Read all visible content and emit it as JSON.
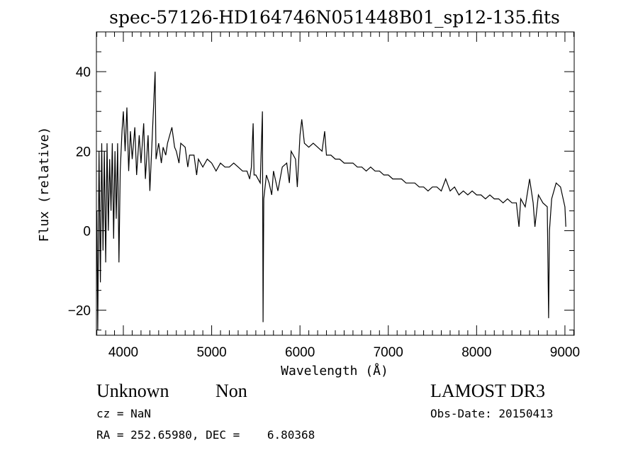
{
  "chart_data": {
    "type": "line",
    "title": "spec-57126-HD164746N051448B01_sp12-135.fits",
    "xlabel": "Wavelength (Å)",
    "ylabel": "Flux (relative)",
    "xlim": [
      3695,
      9105
    ],
    "ylim": [
      -26.3,
      50
    ],
    "xticks": [
      4000,
      5000,
      6000,
      7000,
      8000,
      9000
    ],
    "yticks": [
      -20,
      0,
      20,
      40
    ],
    "xtick_labels": [
      "4000",
      "5000",
      "6000",
      "7000",
      "8000",
      "9000"
    ],
    "ytick_labels": [
      "−20",
      "0",
      "20",
      "40"
    ],
    "x_minor_step": 100,
    "y_minor_step": 5,
    "grid": false,
    "series": [
      {
        "name": "flux",
        "points": [
          [
            3700,
            5
          ],
          [
            3710,
            -25
          ],
          [
            3725,
            20
          ],
          [
            3740,
            -13
          ],
          [
            3755,
            22
          ],
          [
            3770,
            -5
          ],
          [
            3785,
            20
          ],
          [
            3800,
            -8
          ],
          [
            3815,
            22
          ],
          [
            3830,
            0
          ],
          [
            3845,
            18
          ],
          [
            3860,
            5
          ],
          [
            3875,
            22
          ],
          [
            3890,
            -2
          ],
          [
            3905,
            20
          ],
          [
            3920,
            3
          ],
          [
            3935,
            22
          ],
          [
            3950,
            -8
          ],
          [
            3965,
            15
          ],
          [
            3985,
            25
          ],
          [
            4000,
            30
          ],
          [
            4020,
            20
          ],
          [
            4040,
            31
          ],
          [
            4060,
            15
          ],
          [
            4080,
            25
          ],
          [
            4100,
            18
          ],
          [
            4130,
            26
          ],
          [
            4150,
            14
          ],
          [
            4180,
            24
          ],
          [
            4200,
            17
          ],
          [
            4230,
            27
          ],
          [
            4250,
            13
          ],
          [
            4280,
            24
          ],
          [
            4300,
            10
          ],
          [
            4330,
            25
          ],
          [
            4360,
            40
          ],
          [
            4370,
            18
          ],
          [
            4400,
            22
          ],
          [
            4430,
            17
          ],
          [
            4450,
            21
          ],
          [
            4480,
            19
          ],
          [
            4500,
            22
          ],
          [
            4550,
            26
          ],
          [
            4580,
            21
          ],
          [
            4600,
            20
          ],
          [
            4630,
            17
          ],
          [
            4650,
            22
          ],
          [
            4700,
            21
          ],
          [
            4730,
            16
          ],
          [
            4750,
            19
          ],
          [
            4800,
            19
          ],
          [
            4830,
            14
          ],
          [
            4850,
            18
          ],
          [
            4900,
            16
          ],
          [
            4950,
            18
          ],
          [
            5000,
            17
          ],
          [
            5050,
            15
          ],
          [
            5100,
            17
          ],
          [
            5150,
            16
          ],
          [
            5200,
            16
          ],
          [
            5250,
            17
          ],
          [
            5300,
            16
          ],
          [
            5350,
            15
          ],
          [
            5400,
            15
          ],
          [
            5430,
            13
          ],
          [
            5450,
            16
          ],
          [
            5470,
            27
          ],
          [
            5480,
            14
          ],
          [
            5500,
            14
          ],
          [
            5550,
            12
          ],
          [
            5575,
            30
          ],
          [
            5582,
            -23
          ],
          [
            5590,
            8
          ],
          [
            5620,
            14
          ],
          [
            5650,
            12
          ],
          [
            5680,
            9
          ],
          [
            5700,
            15
          ],
          [
            5750,
            10
          ],
          [
            5800,
            16
          ],
          [
            5850,
            17
          ],
          [
            5880,
            12
          ],
          [
            5900,
            20
          ],
          [
            5950,
            18
          ],
          [
            5970,
            11
          ],
          [
            6000,
            24
          ],
          [
            6020,
            28
          ],
          [
            6050,
            22
          ],
          [
            6100,
            21
          ],
          [
            6150,
            22
          ],
          [
            6200,
            21
          ],
          [
            6250,
            20
          ],
          [
            6280,
            25
          ],
          [
            6300,
            19
          ],
          [
            6350,
            19
          ],
          [
            6400,
            18
          ],
          [
            6450,
            18
          ],
          [
            6500,
            17
          ],
          [
            6550,
            17
          ],
          [
            6600,
            17
          ],
          [
            6650,
            16
          ],
          [
            6700,
            16
          ],
          [
            6750,
            15
          ],
          [
            6800,
            16
          ],
          [
            6850,
            15
          ],
          [
            6900,
            15
          ],
          [
            6950,
            14
          ],
          [
            7000,
            14
          ],
          [
            7050,
            13
          ],
          [
            7100,
            13
          ],
          [
            7150,
            13
          ],
          [
            7200,
            12
          ],
          [
            7250,
            12
          ],
          [
            7300,
            12
          ],
          [
            7350,
            11
          ],
          [
            7400,
            11
          ],
          [
            7450,
            10
          ],
          [
            7500,
            11
          ],
          [
            7550,
            11
          ],
          [
            7600,
            10
          ],
          [
            7650,
            13
          ],
          [
            7700,
            10
          ],
          [
            7750,
            11
          ],
          [
            7800,
            9
          ],
          [
            7850,
            10
          ],
          [
            7900,
            9
          ],
          [
            7950,
            10
          ],
          [
            8000,
            9
          ],
          [
            8050,
            9
          ],
          [
            8100,
            8
          ],
          [
            8150,
            9
          ],
          [
            8200,
            8
          ],
          [
            8250,
            8
          ],
          [
            8300,
            7
          ],
          [
            8350,
            8
          ],
          [
            8400,
            7
          ],
          [
            8450,
            7
          ],
          [
            8480,
            1
          ],
          [
            8500,
            8
          ],
          [
            8550,
            6
          ],
          [
            8600,
            13
          ],
          [
            8640,
            7
          ],
          [
            8660,
            1
          ],
          [
            8700,
            9
          ],
          [
            8750,
            7
          ],
          [
            8800,
            6
          ],
          [
            8815,
            -22
          ],
          [
            8825,
            0
          ],
          [
            8850,
            8
          ],
          [
            8900,
            12
          ],
          [
            8950,
            11
          ],
          [
            9000,
            6
          ],
          [
            9010,
            1
          ]
        ]
      }
    ]
  },
  "info": {
    "class": "Unknown",
    "subclass": "Non",
    "survey": "LAMOST DR3",
    "cz": "cz = NaN",
    "obs_date": "Obs-Date: 20150413",
    "radec": "RA = 252.65980, DEC =    6.80368"
  }
}
